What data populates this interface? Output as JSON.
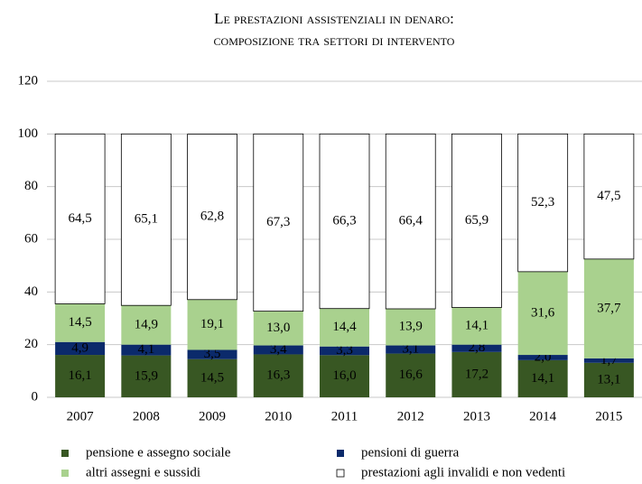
{
  "chart_data": {
    "type": "stacked_bar",
    "title": [
      "Le prestazioni assistenziali in denaro:",
      "composizione tra settori di intervento"
    ],
    "categories": [
      "2007",
      "2008",
      "2009",
      "2010",
      "2011",
      "2012",
      "2013",
      "2014",
      "2015"
    ],
    "series": [
      {
        "name": "pensione  e assegno sociale",
        "color": "#385723",
        "values": [
          16.1,
          15.9,
          14.5,
          16.3,
          16.0,
          16.6,
          17.2,
          14.1,
          13.1
        ],
        "value_labels": [
          "16,1",
          "15,9",
          "14,5",
          "16,3",
          "16,0",
          "16,6",
          "17,2",
          "14,1",
          "13,1"
        ]
      },
      {
        "name": "pensioni di guerra",
        "color": "#0b2a6b",
        "values": [
          4.9,
          4.1,
          3.5,
          3.4,
          3.3,
          3.1,
          2.8,
          2.0,
          1.7
        ],
        "value_labels": [
          "4,9",
          "4,1",
          "3,5",
          "3,4",
          "3,3",
          "3,1",
          "2,8",
          "2,0",
          "1,7"
        ]
      },
      {
        "name": "altri assegni e sussidi",
        "color": "#a9d18e",
        "values": [
          14.5,
          14.9,
          19.1,
          13.0,
          14.4,
          13.9,
          14.1,
          31.6,
          37.7
        ],
        "value_labels": [
          "14,5",
          "14,9",
          "19,1",
          "13,0",
          "14,4",
          "13,9",
          "14,1",
          "31,6",
          "37,7"
        ]
      },
      {
        "name": "prestazioni agli invalidi e non vedenti",
        "color": "#ffffff",
        "values": [
          64.5,
          65.1,
          62.8,
          67.3,
          66.3,
          66.4,
          65.9,
          52.3,
          47.5
        ],
        "value_labels": [
          "64,5",
          "65,1",
          "62,8",
          "67,3",
          "66,3",
          "66,4",
          "65,9",
          "52,3",
          "47,5"
        ]
      }
    ],
    "ylim": [
      0,
      120
    ],
    "yticks": [
      0,
      20,
      40,
      60,
      80,
      100,
      120
    ],
    "grid": true,
    "legend": "bottom"
  }
}
